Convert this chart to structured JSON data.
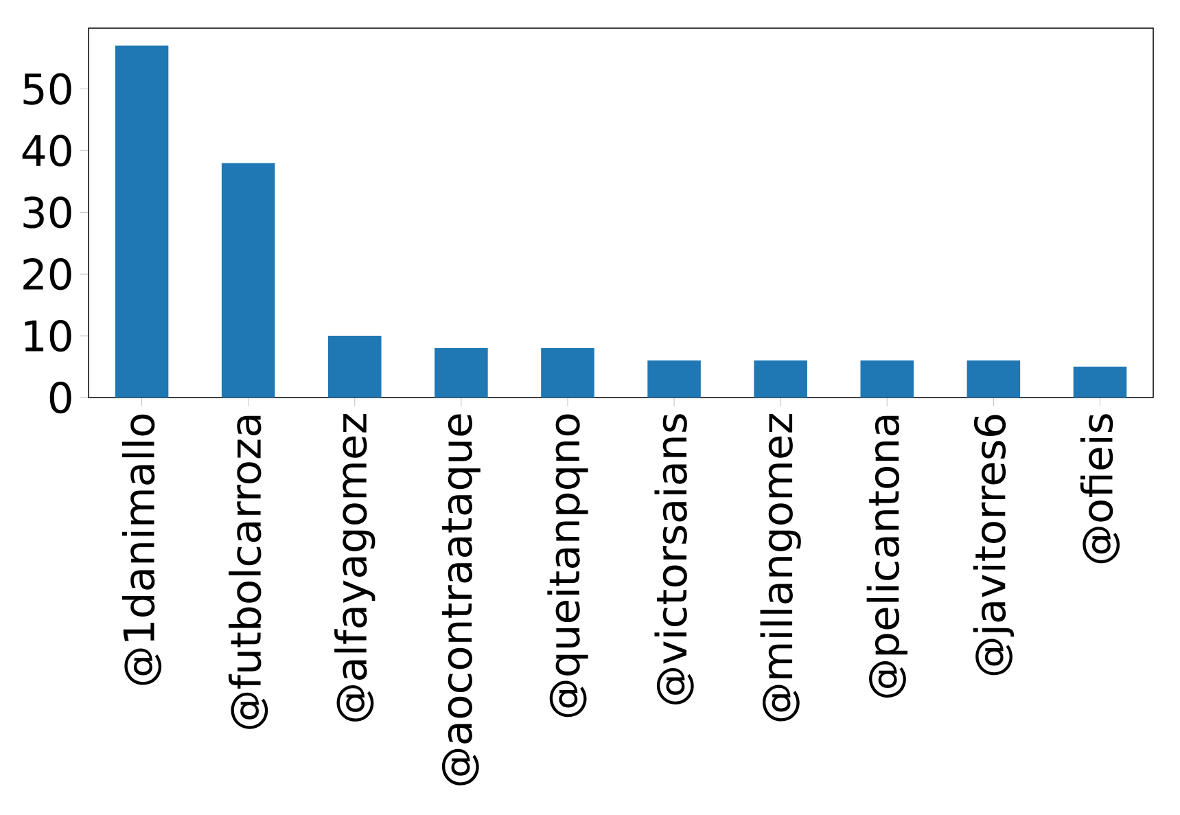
{
  "chart_data": {
    "type": "bar",
    "categories": [
      "@1danimallo",
      "@futbolcarroza",
      "@alfayagomez",
      "@aocontraataque",
      "@queitanpqno",
      "@victorsaians",
      "@millangomez",
      "@pelicantona",
      "@javitorres6",
      "@ofieis"
    ],
    "values": [
      57,
      38,
      10,
      8,
      8,
      6,
      6,
      6,
      6,
      5
    ],
    "color": "#1f77b4",
    "ylim": [
      0,
      59.85
    ],
    "yticks": [
      0,
      10,
      20,
      30,
      40,
      50
    ],
    "grid": false
  }
}
